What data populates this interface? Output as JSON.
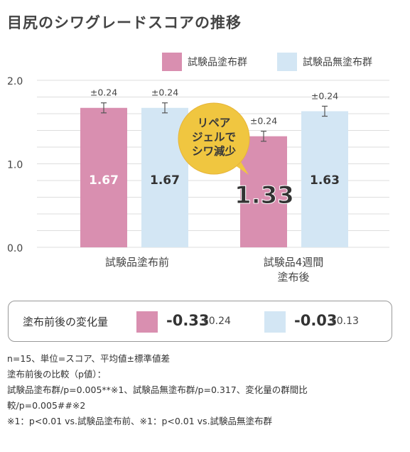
{
  "page": {
    "title": "目尻のシワグレードスコアの推移"
  },
  "colors": {
    "test": "#d98fb0",
    "control": "#d3e6f4",
    "grid": "#dddddd",
    "callout": "#f0c640"
  },
  "chart_data": {
    "type": "bar",
    "title": "目尻のシワグレードスコアの推移",
    "categories": [
      "試験品塗布前",
      "試験品4週間\n塗布後"
    ],
    "series": [
      {
        "name": "試験品塗布群",
        "values": [
          1.67,
          1.33
        ],
        "errors": [
          0.24,
          0.24
        ],
        "color": "#d98fb0"
      },
      {
        "name": "試験品無塗布群",
        "values": [
          1.67,
          1.63
        ],
        "errors": [
          0.24,
          0.24
        ],
        "color": "#d3e6f4"
      }
    ],
    "value_labels": [
      [
        "1.67",
        "1.33"
      ],
      [
        "1.67",
        "1.63"
      ]
    ],
    "error_labels": [
      [
        "±0.24",
        "±0.24"
      ],
      [
        "±0.24",
        "±0.24"
      ]
    ],
    "yticks": [
      "0.0",
      "1.0",
      "2.0"
    ],
    "ylim": [
      0,
      2.0
    ],
    "legend_position": "top-right",
    "grid": true,
    "callout": "リペア\nジェルで\nシワ減少"
  },
  "summary": {
    "label": "塗布前後の変化量",
    "test_value": "-0.33",
    "test_error": "±0.24",
    "control_value": "-0.03",
    "control_error": "±0.13"
  },
  "notes": [
    "n=15、単位=スコア、平均値±標準値差",
    "塗布前後の比較（p値）：",
    "試験品塗布群/p=0.005**※1、試験品無塗布群/p=0.317、変化量の群間比",
    "較/p=0.005##※2",
    "※1：p<0.01 vs.試験品塗布前、※1：p<0.01 vs.試験品無塗布群"
  ]
}
